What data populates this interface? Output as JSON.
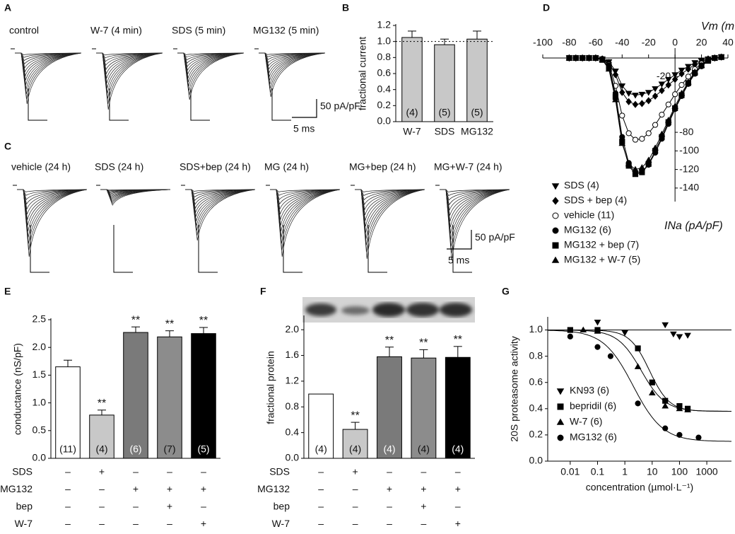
{
  "panel_labels": {
    "a": "A",
    "b": "B",
    "c": "C",
    "d": "D",
    "e": "E",
    "f": "F",
    "g": "G"
  },
  "traces_a": {
    "labels": [
      "control",
      "W-7 (4 min)",
      "SDS (5 min)",
      "MG132 (5 min)"
    ],
    "scale_current": "50 pA/pF",
    "scale_time": "5 ms"
  },
  "traces_c": {
    "labels": [
      "vehicle (24 h)",
      "SDS (24 h)",
      "SDS+bep (24 h)",
      "MG (24 h)",
      "MG+bep (24 h)",
      "MG+W-7 (24 h)"
    ],
    "scale_current": "50 pA/pF",
    "scale_time": "5 ms"
  },
  "chart_data": [
    {
      "type": "bar",
      "ylabel": "fractional current",
      "categories": [
        "W-7",
        "SDS",
        "MG132"
      ],
      "values": [
        1.05,
        0.96,
        1.03
      ],
      "errors": [
        0.08,
        0.07,
        0.1
      ],
      "n_labels": [
        "(4)",
        "(5)",
        "(5)"
      ],
      "color": "#c8c8c8",
      "reference_line": 1.0,
      "ylim": [
        0,
        1.2
      ],
      "yticks": [
        {
          "value": 0,
          "label": "0.0"
        },
        0.2,
        0.4,
        0.6,
        0.8,
        {
          "value": 1,
          "label": "1.0"
        },
        1.2
      ]
    },
    {
      "type": "line",
      "xlabel": "Vm (mV)",
      "ylabel": "INa (pA/pF)",
      "x": [
        -80,
        -75,
        -70,
        -65,
        -60,
        -55,
        -50,
        -45,
        -40,
        -35,
        -30,
        -25,
        -20,
        -15,
        -10,
        -5,
        0,
        5,
        10,
        15,
        20,
        25,
        30,
        35
      ],
      "series": [
        {
          "name": "SDS (4)",
          "color": "#000000",
          "marker": "triangle-down",
          "values": [
            0,
            0,
            0,
            0,
            0,
            -1,
            -4,
            -14,
            -30,
            -38,
            -40,
            -39,
            -37,
            -33,
            -28,
            -23,
            -18,
            -13,
            -9,
            -5,
            -3,
            -1,
            0,
            1
          ]
        },
        {
          "name": "SDS + bep (4)",
          "color": "#000000",
          "marker": "diamond",
          "values": [
            0,
            0,
            0,
            0,
            0,
            -1,
            -5,
            -18,
            -37,
            -47,
            -50,
            -49,
            -46,
            -41,
            -35,
            -29,
            -23,
            -17,
            -12,
            -7,
            -4,
            -1,
            0,
            1
          ]
        },
        {
          "name": "vehicle (11)",
          "color": "#000000",
          "fill": "#ffffff",
          "marker": "circle",
          "values": [
            0,
            0,
            0,
            0,
            0,
            -1,
            -7,
            -30,
            -62,
            -81,
            -88,
            -87,
            -81,
            -72,
            -61,
            -50,
            -39,
            -29,
            -20,
            -12,
            -6,
            -2,
            0,
            1
          ]
        },
        {
          "name": "MG132 (6)",
          "color": "#000000",
          "marker": "circle",
          "values": [
            0,
            0,
            0,
            0,
            0,
            -1,
            -8,
            -38,
            -85,
            -113,
            -124,
            -123,
            -115,
            -102,
            -87,
            -71,
            -55,
            -41,
            -28,
            -17,
            -9,
            -3,
            0,
            1
          ]
        },
        {
          "name": "MG132 + bep (7)",
          "color": "#000000",
          "marker": "square",
          "values": [
            0,
            0,
            0,
            0,
            0,
            -2,
            -10,
            -42,
            -90,
            -116,
            -125,
            -123,
            -114,
            -100,
            -85,
            -69,
            -54,
            -40,
            -27,
            -16,
            -8,
            -3,
            0,
            1
          ]
        },
        {
          "name": "MG132 + W-7 (5)",
          "color": "#000000",
          "marker": "triangle-up",
          "values": [
            0,
            0,
            0,
            0,
            0,
            -2,
            -12,
            -45,
            -92,
            -114,
            -120,
            -118,
            -110,
            -97,
            -82,
            -67,
            -52,
            -38,
            -26,
            -15,
            -8,
            -2,
            0,
            1
          ]
        }
      ],
      "xlim": [
        -100,
        40
      ],
      "ylim": [
        -150,
        0
      ],
      "xticks": [
        -100,
        -80,
        -60,
        -40,
        -20,
        0,
        20,
        40
      ],
      "yticks": [
        -20,
        -80,
        -100,
        -120,
        -140
      ]
    },
    {
      "type": "bar",
      "ylabel": "conductance  (nS/pF)",
      "values": [
        1.65,
        0.78,
        2.27,
        2.19,
        2.25
      ],
      "errors": [
        0.12,
        0.09,
        0.1,
        0.11,
        0.11
      ],
      "colors": [
        "#ffffff",
        "#c8c8c8",
        "#7a7a7a",
        "#8c8c8c",
        "#000000"
      ],
      "n_labels": [
        "(11)",
        "(4)",
        "(6)",
        "(7)",
        "(5)"
      ],
      "significance": [
        null,
        "**",
        "**",
        "**",
        "**"
      ],
      "treatments": [
        {
          "name": "SDS",
          "signs": [
            "–",
            "+",
            "–",
            "–",
            "–"
          ]
        },
        {
          "name": "MG132",
          "signs": [
            "–",
            "–",
            "+",
            "+",
            "+"
          ]
        },
        {
          "name": "bep",
          "signs": [
            "–",
            "–",
            "–",
            "+",
            "–"
          ]
        },
        {
          "name": "W-7",
          "signs": [
            "–",
            "–",
            "–",
            "–",
            "+"
          ]
        }
      ],
      "ylim": [
        0,
        2.5
      ],
      "yticks": [
        {
          "value": 0,
          "label": "0.0"
        },
        0.5,
        {
          "value": 1,
          "label": "1.0"
        },
        1.5,
        {
          "value": 2,
          "label": "2.0"
        },
        2.5
      ]
    },
    {
      "type": "bar",
      "ylabel": "fractional protein",
      "values": [
        1.0,
        0.45,
        1.58,
        1.56,
        1.57
      ],
      "errors": [
        null,
        0.11,
        0.15,
        0.13,
        0.17
      ],
      "colors": [
        "#ffffff",
        "#c8c8c8",
        "#7a7a7a",
        "#8c8c8c",
        "#000000"
      ],
      "n_labels": [
        "(4)",
        "(4)",
        "(4)",
        "(4)",
        "(4)"
      ],
      "significance": [
        null,
        "**",
        "**",
        "**",
        "**"
      ],
      "treatments": [
        {
          "name": "SDS",
          "signs": [
            "–",
            "+",
            "–",
            "–",
            "–"
          ]
        },
        {
          "name": "MG132",
          "signs": [
            "–",
            "–",
            "+",
            "+",
            "+"
          ]
        },
        {
          "name": "bep",
          "signs": [
            "–",
            "–",
            "–",
            "+",
            "–"
          ]
        },
        {
          "name": "W-7",
          "signs": [
            "–",
            "–",
            "–",
            "–",
            "+"
          ]
        }
      ],
      "ylim": [
        0,
        2.2
      ],
      "yticks": [
        {
          "value": 0,
          "label": "0.0"
        },
        0.4,
        0.8,
        1.2,
        1.6,
        {
          "value": 2,
          "label": "2.0"
        }
      ]
    },
    {
      "type": "scatter",
      "xlabel": "concentration (µmol·L⁻¹)",
      "ylabel": "20S proteasome activity",
      "xscale": "log",
      "series": [
        {
          "name": "KN93 (6)",
          "color": "#000000",
          "marker": "triangle-down",
          "x": [
            0.1,
            1,
            30,
            60,
            100,
            200
          ],
          "values": [
            1.06,
            0.98,
            1.04,
            0.97,
            0.95,
            0.96
          ],
          "fit": {
            "top": 1.0
          }
        },
        {
          "name": "bepridil (6)",
          "color": "#000000",
          "marker": "square",
          "x": [
            0.01,
            0.1,
            3,
            10,
            30,
            100,
            200
          ],
          "values": [
            1.0,
            1.0,
            0.86,
            0.6,
            0.46,
            0.42,
            0.4
          ],
          "fit": {
            "top": 1.0,
            "bottom": 0.38,
            "ic50": 8,
            "hill": 1.2
          }
        },
        {
          "name": "W-7 (6)",
          "color": "#000000",
          "marker": "triangle-up",
          "x": [
            0.03,
            0.1,
            3,
            10,
            30,
            100,
            200
          ],
          "values": [
            1.0,
            0.99,
            0.72,
            0.52,
            0.42,
            0.4,
            0.39
          ],
          "fit": {
            "top": 1.0,
            "bottom": 0.38,
            "ic50": 4,
            "hill": 1.0
          }
        },
        {
          "name": "MG132  (6)",
          "color": "#000000",
          "marker": "circle",
          "x": [
            0.01,
            0.1,
            0.3,
            3,
            30,
            100,
            500
          ],
          "values": [
            0.95,
            0.87,
            0.8,
            0.44,
            0.25,
            0.2,
            0.18
          ],
          "fit": {
            "top": 1.0,
            "bottom": 0.15,
            "ic50": 2,
            "hill": 0.8
          }
        }
      ],
      "xlim": [
        0.0015,
        8000
      ],
      "ylim": [
        0,
        1.1
      ],
      "xticks": [
        0.01,
        0.1,
        1,
        10,
        100,
        1000
      ],
      "yticks": [
        {
          "value": 0,
          "label": "0.0"
        },
        0.2,
        0.4,
        0.6,
        0.8,
        {
          "value": 1,
          "label": "1.0"
        }
      ]
    }
  ]
}
